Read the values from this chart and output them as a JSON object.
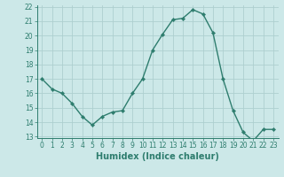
{
  "x": [
    0,
    1,
    2,
    3,
    4,
    5,
    6,
    7,
    8,
    9,
    10,
    11,
    12,
    13,
    14,
    15,
    16,
    17,
    18,
    19,
    20,
    21,
    22,
    23
  ],
  "y": [
    17.0,
    16.3,
    16.0,
    15.3,
    14.4,
    13.8,
    14.4,
    14.7,
    14.8,
    16.0,
    17.0,
    19.0,
    20.1,
    21.1,
    21.2,
    21.8,
    21.5,
    20.2,
    17.0,
    14.8,
    13.3,
    12.7,
    13.5,
    13.5
  ],
  "line_color": "#2e7d6e",
  "marker": "D",
  "marker_size": 2.2,
  "bg_color": "#cce8e8",
  "grid_color": "#aecfcf",
  "xlabel": "Humidex (Indice chaleur)",
  "ylim": [
    13,
    22
  ],
  "xlim": [
    -0.5,
    23.5
  ],
  "yticks": [
    13,
    14,
    15,
    16,
    17,
    18,
    19,
    20,
    21,
    22
  ],
  "xticks": [
    0,
    1,
    2,
    3,
    4,
    5,
    6,
    7,
    8,
    9,
    10,
    11,
    12,
    13,
    14,
    15,
    16,
    17,
    18,
    19,
    20,
    21,
    22,
    23
  ],
  "tick_label_fontsize": 5.5,
  "xlabel_fontsize": 7.0,
  "linewidth": 1.0
}
